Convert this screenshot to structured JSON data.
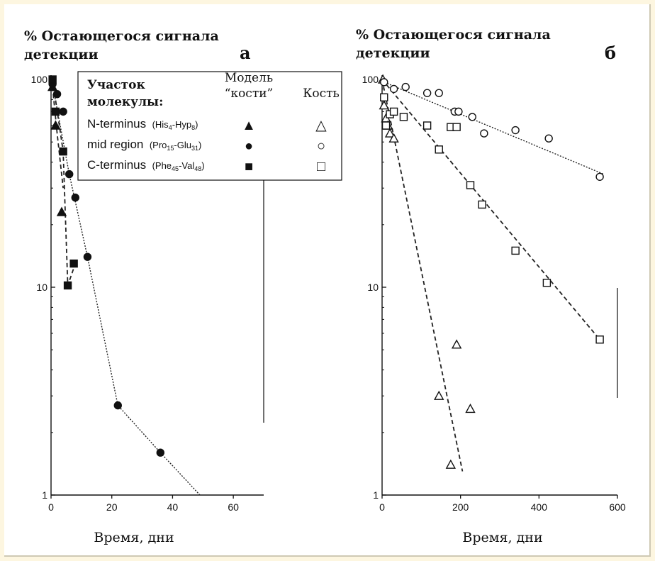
{
  "chart_data": [
    {
      "type": "scatter",
      "panel_letter": "а",
      "ylabel_line1": "% Остающегося сигнала",
      "ylabel_line2": "детекции",
      "xlabel": "Время,  дни",
      "yscale": "log",
      "xlim": [
        0,
        70
      ],
      "ylim": [
        1,
        100
      ],
      "x_ticks": [
        "0",
        "20",
        "40",
        "60"
      ],
      "y_ticks": [
        "1",
        "10",
        "100"
      ],
      "legend": {
        "header_line1": "Участок",
        "header_line2": "молекулы:",
        "col1_line1": "Модель",
        "col1_line2": "“кости”",
        "col2": "Кость",
        "rows": [
          {
            "main": "N-terminus",
            "paren": "(His",
            "sub1": "4",
            "mid": "-Hyp",
            "sub2": "8",
            "end": ")",
            "marker_filled": "▲",
            "marker_open": "△"
          },
          {
            "main": "mid region",
            "paren": "(Pro",
            "sub1": "15",
            "mid": "-Glu",
            "sub2": "31",
            "end": ")",
            "marker_filled": "●",
            "marker_open": "○"
          },
          {
            "main": "C-terminus",
            "paren": "(Phe",
            "sub1": "45",
            "mid": "-Val",
            "sub2": "48",
            "end": ")",
            "marker_filled": "■",
            "marker_open": "□"
          }
        ]
      },
      "series": [
        {
          "marker": "triangle-filled",
          "x": [
            0.5,
            1.5,
            3.5
          ],
          "y": [
            92,
            60,
            23
          ]
        },
        {
          "marker": "circle-filled",
          "x": [
            0.5,
            2,
            4,
            6,
            8,
            12,
            22,
            36
          ],
          "y": [
            95,
            85,
            70,
            35,
            27,
            14,
            2.7,
            1.6
          ]
        },
        {
          "marker": "square-filled",
          "x": [
            0.5,
            1.5,
            4,
            5.5,
            7.5
          ],
          "y": [
            100,
            70,
            45,
            10.2,
            13
          ]
        }
      ],
      "lines": [
        {
          "style": "dashed",
          "x": [
            0.5,
            2,
            4
          ],
          "y": [
            92,
            55,
            30
          ]
        },
        {
          "style": "dashed",
          "x": [
            0.5,
            4,
            5.5,
            8
          ],
          "y": [
            100,
            45,
            10.2,
            13
          ]
        },
        {
          "style": "dotted",
          "x": [
            0.5,
            6,
            12,
            22,
            36,
            49
          ],
          "y": [
            95,
            35,
            14,
            2.7,
            1.6,
            1
          ]
        }
      ]
    },
    {
      "type": "scatter",
      "panel_letter": "б",
      "ylabel_line1": "% Остающегося сигнала",
      "ylabel_line2": "детекции",
      "xlabel": "Время,  дни",
      "yscale": "log",
      "xlim": [
        0,
        600
      ],
      "ylim": [
        1,
        100
      ],
      "x_ticks": [
        "0",
        "200",
        "400",
        "600"
      ],
      "y_ticks": [
        "1",
        "10",
        "100"
      ],
      "series": [
        {
          "marker": "triangle-open",
          "x": [
            2,
            5,
            10,
            15,
            20,
            30,
            145,
            175,
            190,
            225
          ],
          "y": [
            100,
            75,
            65,
            60,
            55,
            52,
            3.0,
            1.4,
            5.3,
            2.6
          ]
        },
        {
          "marker": "circle-open",
          "x": [
            5,
            30,
            60,
            115,
            145,
            185,
            195,
            230,
            260,
            340,
            425,
            555
          ],
          "y": [
            97,
            90,
            92,
            86,
            86,
            70,
            70,
            66,
            55,
            57,
            52,
            34
          ]
        },
        {
          "marker": "square-open",
          "x": [
            5,
            10,
            20,
            30,
            55,
            115,
            145,
            175,
            190,
            225,
            255,
            340,
            420,
            555
          ],
          "y": [
            82,
            60,
            68,
            70,
            66,
            60,
            46,
            59,
            59,
            31,
            25,
            15,
            10.5,
            5.6
          ]
        }
      ],
      "lines": [
        {
          "style": "dashed",
          "x": [
            0,
            205
          ],
          "y": [
            100,
            1.3
          ]
        },
        {
          "style": "dashed",
          "x": [
            0,
            555
          ],
          "y": [
            100,
            5.6
          ]
        },
        {
          "style": "dotted",
          "x": [
            0,
            565
          ],
          "y": [
            98,
            35
          ]
        }
      ]
    }
  ]
}
